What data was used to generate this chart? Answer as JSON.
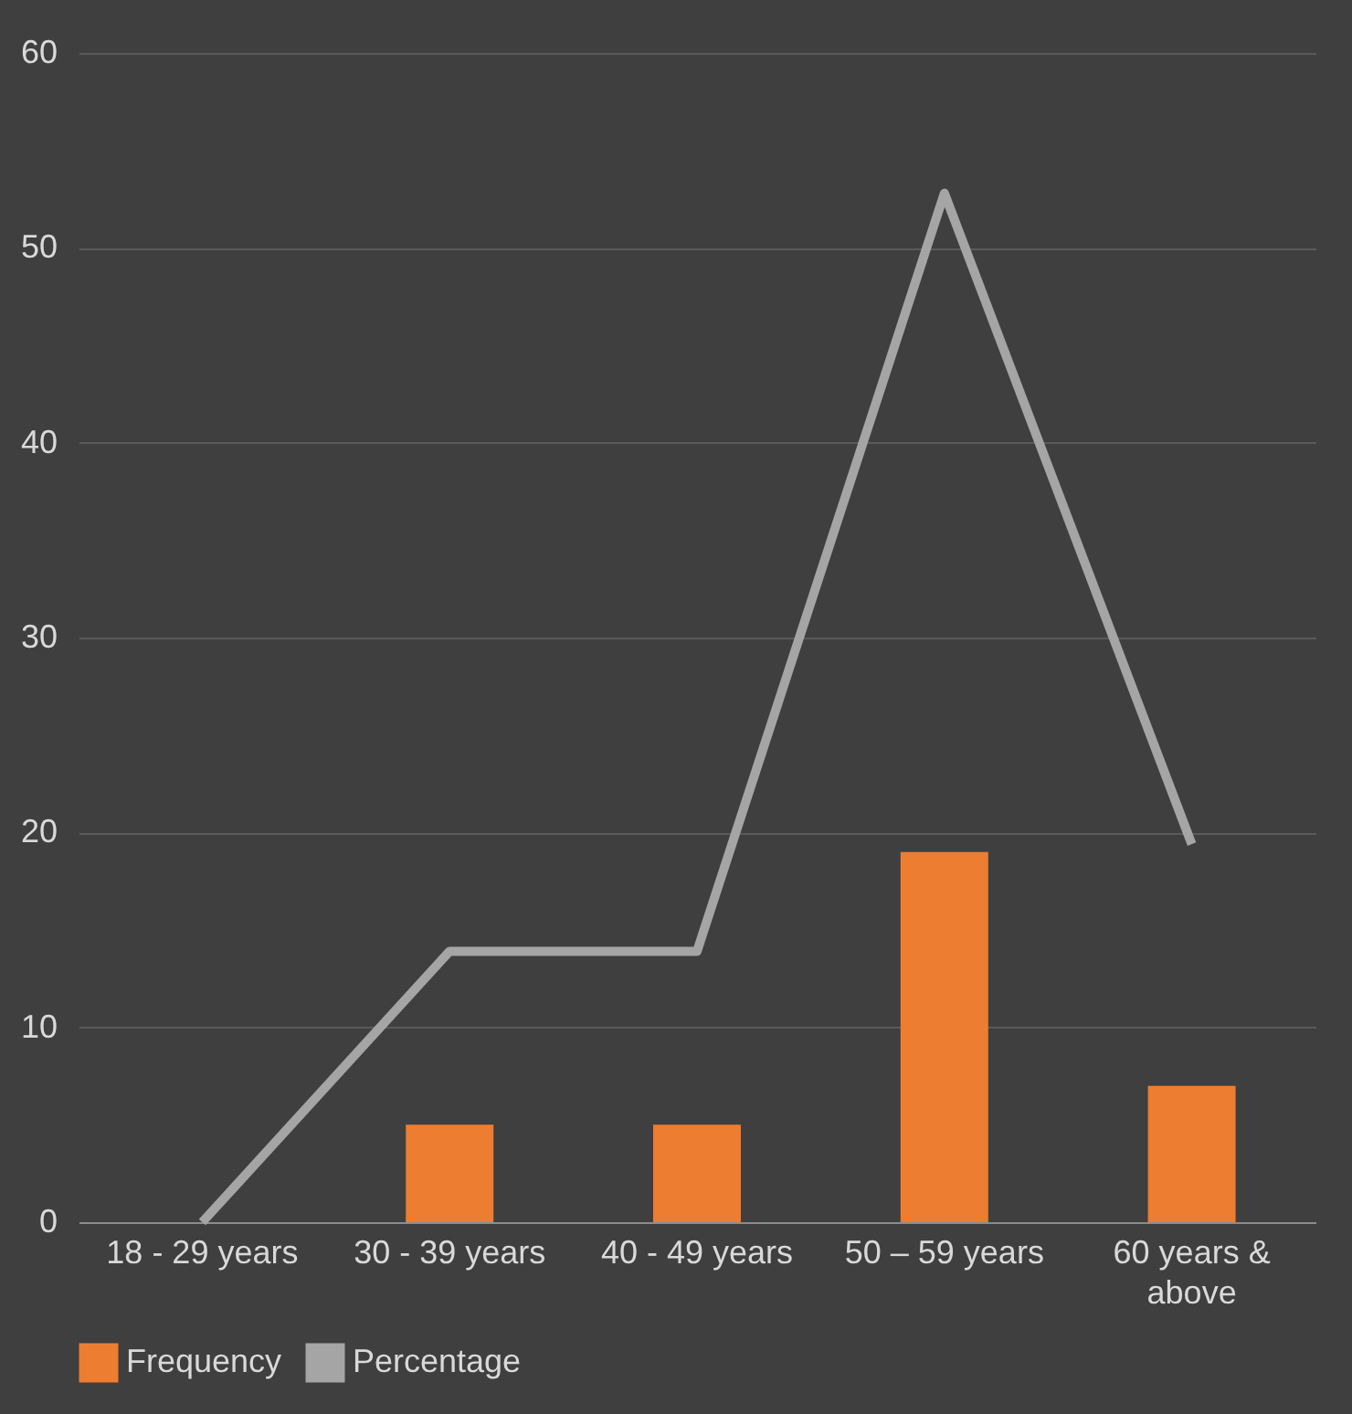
{
  "chart_data": {
    "type": "bar",
    "categories": [
      "18 - 29 years",
      "30 - 39 years",
      "40 - 49 years",
      "50 – 59 years",
      "60 years & above"
    ],
    "series": [
      {
        "name": "Frequency",
        "color": "#ed7d31",
        "values": [
          0,
          5,
          5,
          19,
          7
        ]
      },
      {
        "name": "Percentage",
        "type": "line",
        "color": "#a5a5a5",
        "values": [
          0,
          13.9,
          13.9,
          52.8,
          19.4
        ]
      }
    ],
    "ylim": [
      0,
      60
    ],
    "yticks": [
      0,
      10,
      20,
      30,
      40,
      50,
      60
    ],
    "grid": "y",
    "legend": "bottom",
    "marker": "none"
  }
}
